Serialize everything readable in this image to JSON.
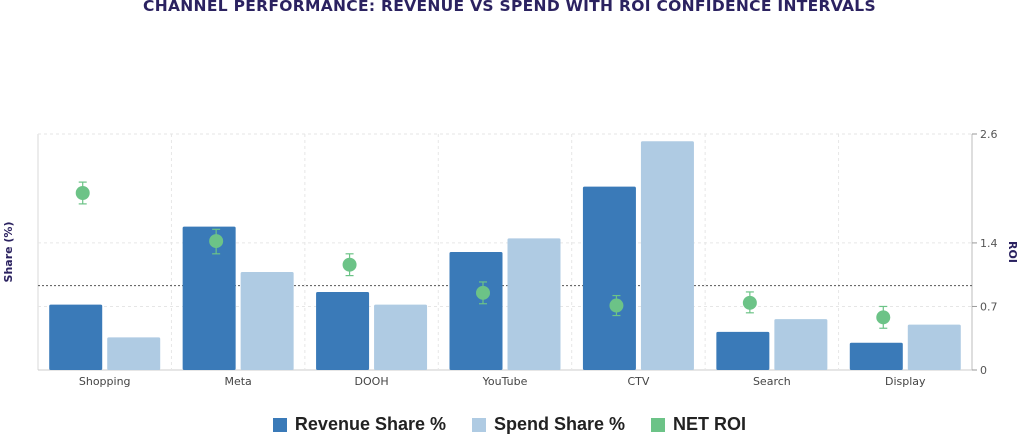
{
  "chart_data": {
    "type": "bar",
    "title": "CHANNEL PERFORMANCE: REVENUE VS SPEND WITH ROI CONFIDENCE INTERVALS",
    "categories": [
      "Shopping",
      "Meta",
      "DOOH",
      "YouTube",
      "CTV",
      "Search",
      "Display"
    ],
    "ylabel": "Share (%)",
    "y2label": "ROI",
    "y2ticks": [
      "0",
      "0.7",
      "1.4",
      "2.6"
    ],
    "y2ticks_values": [
      0,
      0.7,
      1.4,
      2.6
    ],
    "y2lim": [
      0,
      2.6
    ],
    "reference_line_roi": 0.93,
    "series": [
      {
        "name": "Revenue Share %",
        "color": "#3a7ab8",
        "axis": "left",
        "values": [
          0.72,
          1.58,
          0.86,
          1.3,
          2.02,
          0.42,
          0.3
        ]
      },
      {
        "name": "Spend Share %",
        "color": "#afcbe3",
        "axis": "left",
        "values": [
          0.36,
          1.08,
          0.72,
          1.45,
          2.52,
          0.56,
          0.5
        ]
      },
      {
        "name": "NET ROI",
        "color": "#6cc387",
        "axis": "right",
        "type": "scatter",
        "values": [
          1.95,
          1.42,
          1.16,
          0.85,
          0.71,
          0.74,
          0.58
        ],
        "ci_low": [
          1.83,
          1.28,
          1.04,
          0.73,
          0.6,
          0.63,
          0.46
        ],
        "ci_high": [
          2.07,
          1.55,
          1.28,
          0.97,
          0.82,
          0.86,
          0.7
        ]
      }
    ],
    "legend_position": "bottom",
    "grid": true
  }
}
